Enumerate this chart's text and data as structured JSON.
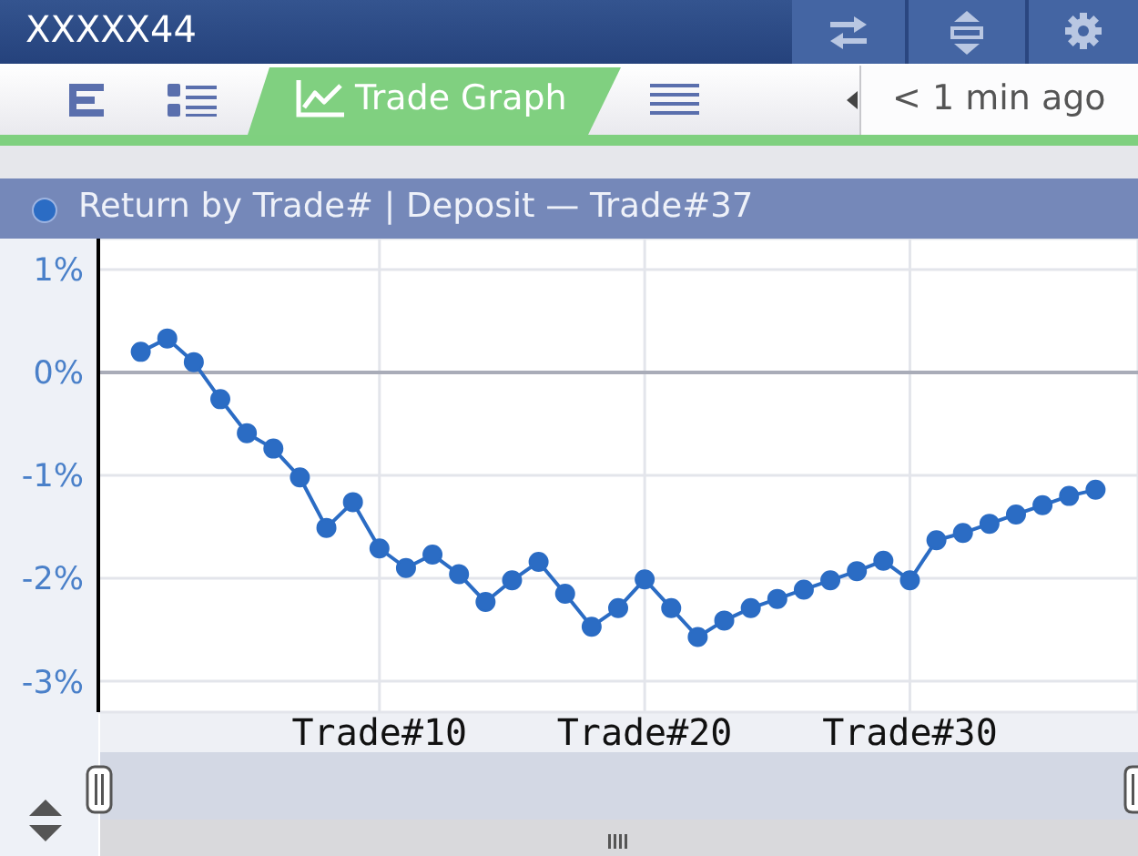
{
  "chart_data": {
    "type": "line",
    "title": "Return by Trade# | Deposit — Trade#37",
    "annotations": [
      "XXXXX44",
      "Trade Graph",
      "< 1 min ago"
    ],
    "x": [
      1,
      2,
      3,
      4,
      5,
      6,
      7,
      8,
      9,
      10,
      11,
      12,
      13,
      14,
      15,
      16,
      17,
      18,
      19,
      20,
      21,
      22,
      23,
      24,
      25,
      26,
      27,
      28,
      29,
      30,
      31,
      32,
      33,
      34,
      35,
      36,
      37
    ],
    "series": [
      {
        "color": "#2b6cc4",
        "values": [
          0.2,
          0.33,
          0.1,
          -0.26,
          -0.59,
          -0.74,
          -1.02,
          -1.51,
          -1.26,
          -1.71,
          -1.9,
          -1.77,
          -1.96,
          -2.23,
          -2.02,
          -1.84,
          -2.15,
          -2.47,
          -2.29,
          -2.01,
          -2.29,
          -2.57,
          -2.41,
          -2.29,
          -2.2,
          -2.11,
          -2.02,
          -1.93,
          -1.83,
          -2.02,
          -1.63,
          -1.56,
          -1.47,
          -1.38,
          -1.29,
          -1.2,
          -1.14
        ]
      }
    ],
    "xlim": [
      -0.6,
      38.6
    ],
    "xticks": [
      {
        "value": 10,
        "label": "Trade#10"
      },
      {
        "value": 20,
        "label": "Trade#20"
      },
      {
        "value": 30,
        "label": "Trade#30"
      }
    ],
    "ylim": [
      -3.3,
      1.3
    ],
    "yticks": [
      {
        "value": -3,
        "label": "-3%"
      },
      {
        "value": -2,
        "label": "-2%"
      },
      {
        "value": -1,
        "label": "-1%"
      },
      {
        "value": 0,
        "label": "0%"
      },
      {
        "value": 1,
        "label": "1%"
      }
    ],
    "grid": true,
    "marker": "circle",
    "ref_lines": [
      {
        "axis": "y",
        "value": 0,
        "color": "#a9acb8"
      }
    ]
  }
}
